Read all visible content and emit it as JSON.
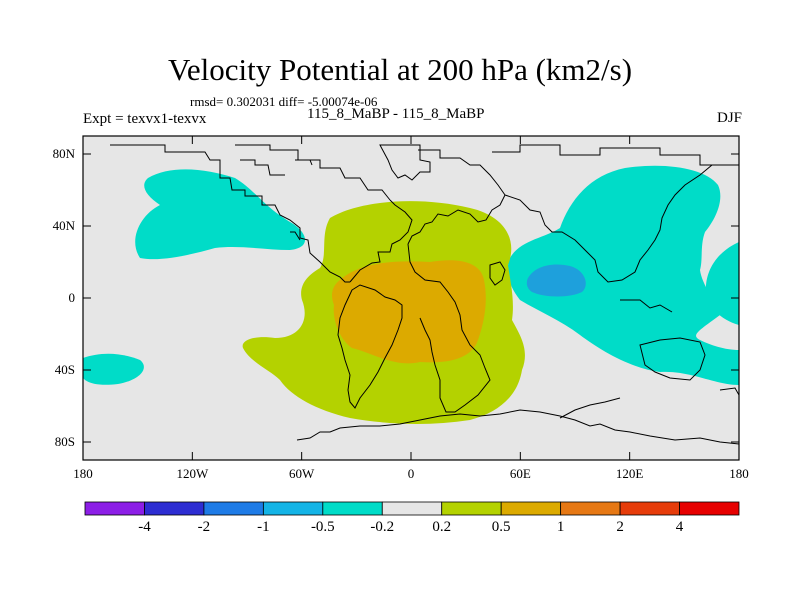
{
  "title": "Velocity Potential at 200 hPa (km2/s)",
  "stats": "rmsd= 0.302031 diff= -5.00074e-06",
  "expt": "Expt = texvx1-texvx",
  "runs": "115_8_MaBP - 115_8_MaBP",
  "season": "DJF",
  "lat_ticks": [
    {
      "value": 80,
      "label": "80N"
    },
    {
      "value": 40,
      "label": "40N"
    },
    {
      "value": 0,
      "label": "0"
    },
    {
      "value": -40,
      "label": "40S"
    },
    {
      "value": -80,
      "label": "80S"
    }
  ],
  "lon_ticks": [
    {
      "value": -180,
      "label": "180"
    },
    {
      "value": -120,
      "label": "120W"
    },
    {
      "value": -60,
      "label": "60W"
    },
    {
      "value": 0,
      "label": "0"
    },
    {
      "value": 60,
      "label": "60E"
    },
    {
      "value": 120,
      "label": "120E"
    },
    {
      "value": 180,
      "label": "180"
    }
  ],
  "colorbar": {
    "colors": [
      "#8c1ee6",
      "#2d2dd2",
      "#1e7be6",
      "#14b4e6",
      "#00dcc8",
      "#e6e6e6",
      "#b4d200",
      "#dcaa00",
      "#e67814",
      "#e63c0a",
      "#e60000"
    ],
    "labels": [
      "-4",
      "-2",
      "-1",
      "-0.5",
      "-0.2",
      "0.2",
      "0.5",
      "1",
      "2",
      "4"
    ]
  },
  "map": {
    "background_color": "#e6e6e6",
    "coastline_color": "#000000"
  }
}
